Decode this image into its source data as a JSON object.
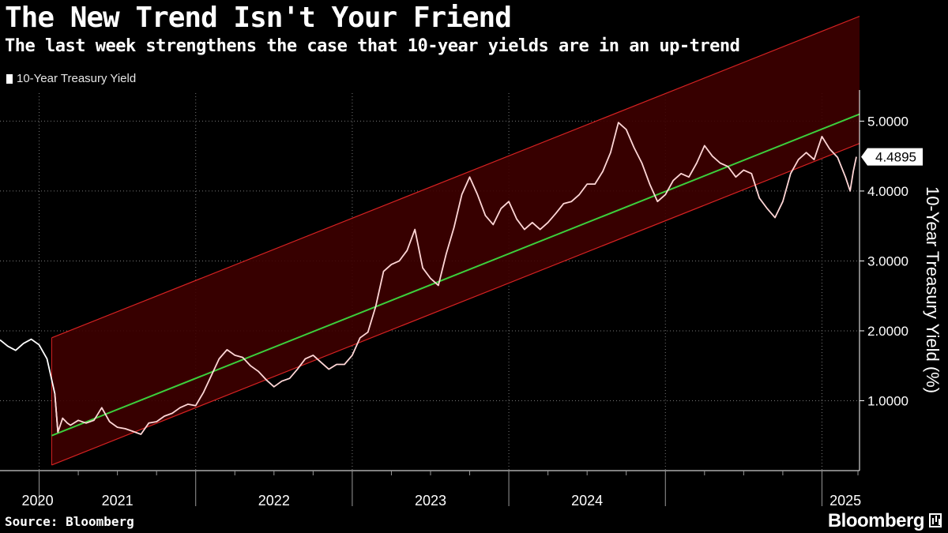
{
  "header": {
    "title": "The New Trend Isn't Your Friend",
    "subtitle": "The last week strengthens the case that 10-year yields are in an up-trend"
  },
  "legend": {
    "label": "10-Year Treasury Yield"
  },
  "footer": {
    "source": "Source: Bloomberg",
    "brand": "Bloomberg"
  },
  "colors": {
    "background": "#000000",
    "series": "#ffffff",
    "channel_series": "#ffd6d6",
    "channel_fill": "#3d0000",
    "channel_line": "#d62222",
    "trend": "#3ccf3c"
  },
  "chart_data": {
    "type": "line",
    "title": "The New Trend Isn't Your Friend",
    "ylabel": "10-Year Treasury Yield (%)",
    "xlabel": "",
    "ylim": [
      0.0,
      5.4
    ],
    "xlim": [
      2019.75,
      2025.24
    ],
    "y_ticks": [
      "1.0000",
      "2.0000",
      "3.0000",
      "4.0000",
      "5.0000"
    ],
    "y_tick_values": [
      1,
      2,
      3,
      4,
      5
    ],
    "x_ticks": [
      "2020",
      "2021",
      "2022",
      "2023",
      "2024",
      "2025"
    ],
    "x_tick_values": [
      2020.0,
      2021.0,
      2022.0,
      2023.0,
      2024.0,
      2025.0
    ],
    "last_value_label": "4.4895",
    "trend": {
      "start": [
        2020.08,
        0.5
      ],
      "end": [
        2025.24,
        5.1
      ]
    },
    "channel_width": 0.95,
    "channel_start": 2020.08,
    "series": [
      {
        "name": "10-Year Treasury Yield",
        "x": [
          2019.75,
          2019.8,
          2019.85,
          2019.9,
          2019.95,
          2020.0,
          2020.05,
          2020.1,
          2020.12,
          2020.15,
          2020.18,
          2020.2,
          2020.25,
          2020.3,
          2020.35,
          2020.4,
          2020.45,
          2020.5,
          2020.55,
          2020.6,
          2020.65,
          2020.7,
          2020.75,
          2020.8,
          2020.85,
          2020.9,
          2020.95,
          2021.0,
          2021.05,
          2021.1,
          2021.15,
          2021.2,
          2021.25,
          2021.3,
          2021.35,
          2021.4,
          2021.45,
          2021.5,
          2021.55,
          2021.6,
          2021.65,
          2021.7,
          2021.75,
          2021.8,
          2021.85,
          2021.9,
          2021.95,
          2022.0,
          2022.05,
          2022.1,
          2022.15,
          2022.2,
          2022.25,
          2022.3,
          2022.35,
          2022.4,
          2022.45,
          2022.5,
          2022.55,
          2022.6,
          2022.65,
          2022.7,
          2022.75,
          2022.8,
          2022.85,
          2022.9,
          2022.95,
          2023.0,
          2023.05,
          2023.1,
          2023.15,
          2023.2,
          2023.25,
          2023.3,
          2023.35,
          2023.4,
          2023.45,
          2023.5,
          2023.55,
          2023.6,
          2023.65,
          2023.7,
          2023.75,
          2023.8,
          2023.85,
          2023.9,
          2023.95,
          2024.0,
          2024.05,
          2024.1,
          2024.15,
          2024.2,
          2024.25,
          2024.3,
          2024.35,
          2024.4,
          2024.45,
          2024.5,
          2024.55,
          2024.6,
          2024.65,
          2024.7,
          2024.75,
          2024.8,
          2024.85,
          2024.9,
          2024.95,
          2025.0,
          2025.05,
          2025.1,
          2025.15,
          2025.18,
          2025.2,
          2025.22
        ],
        "values": [
          1.87,
          1.78,
          1.72,
          1.82,
          1.88,
          1.8,
          1.6,
          1.1,
          0.55,
          0.75,
          0.68,
          0.65,
          0.72,
          0.68,
          0.72,
          0.9,
          0.7,
          0.62,
          0.6,
          0.56,
          0.52,
          0.68,
          0.7,
          0.78,
          0.82,
          0.9,
          0.95,
          0.93,
          1.12,
          1.36,
          1.6,
          1.73,
          1.65,
          1.62,
          1.5,
          1.42,
          1.3,
          1.2,
          1.28,
          1.32,
          1.45,
          1.6,
          1.65,
          1.55,
          1.45,
          1.52,
          1.52,
          1.65,
          1.9,
          1.98,
          2.35,
          2.85,
          2.95,
          3.0,
          3.15,
          3.45,
          2.9,
          2.75,
          2.65,
          3.1,
          3.48,
          3.95,
          4.2,
          3.95,
          3.65,
          3.52,
          3.75,
          3.85,
          3.6,
          3.45,
          3.55,
          3.45,
          3.55,
          3.68,
          3.82,
          3.85,
          3.95,
          4.1,
          4.1,
          4.28,
          4.55,
          4.98,
          4.88,
          4.62,
          4.4,
          4.1,
          3.85,
          3.95,
          4.15,
          4.25,
          4.2,
          4.4,
          4.65,
          4.5,
          4.4,
          4.35,
          4.2,
          4.3,
          4.25,
          3.9,
          3.75,
          3.62,
          3.85,
          4.25,
          4.45,
          4.55,
          4.45,
          4.78,
          4.6,
          4.48,
          4.2,
          4.0,
          4.28,
          4.49
        ]
      }
    ]
  }
}
